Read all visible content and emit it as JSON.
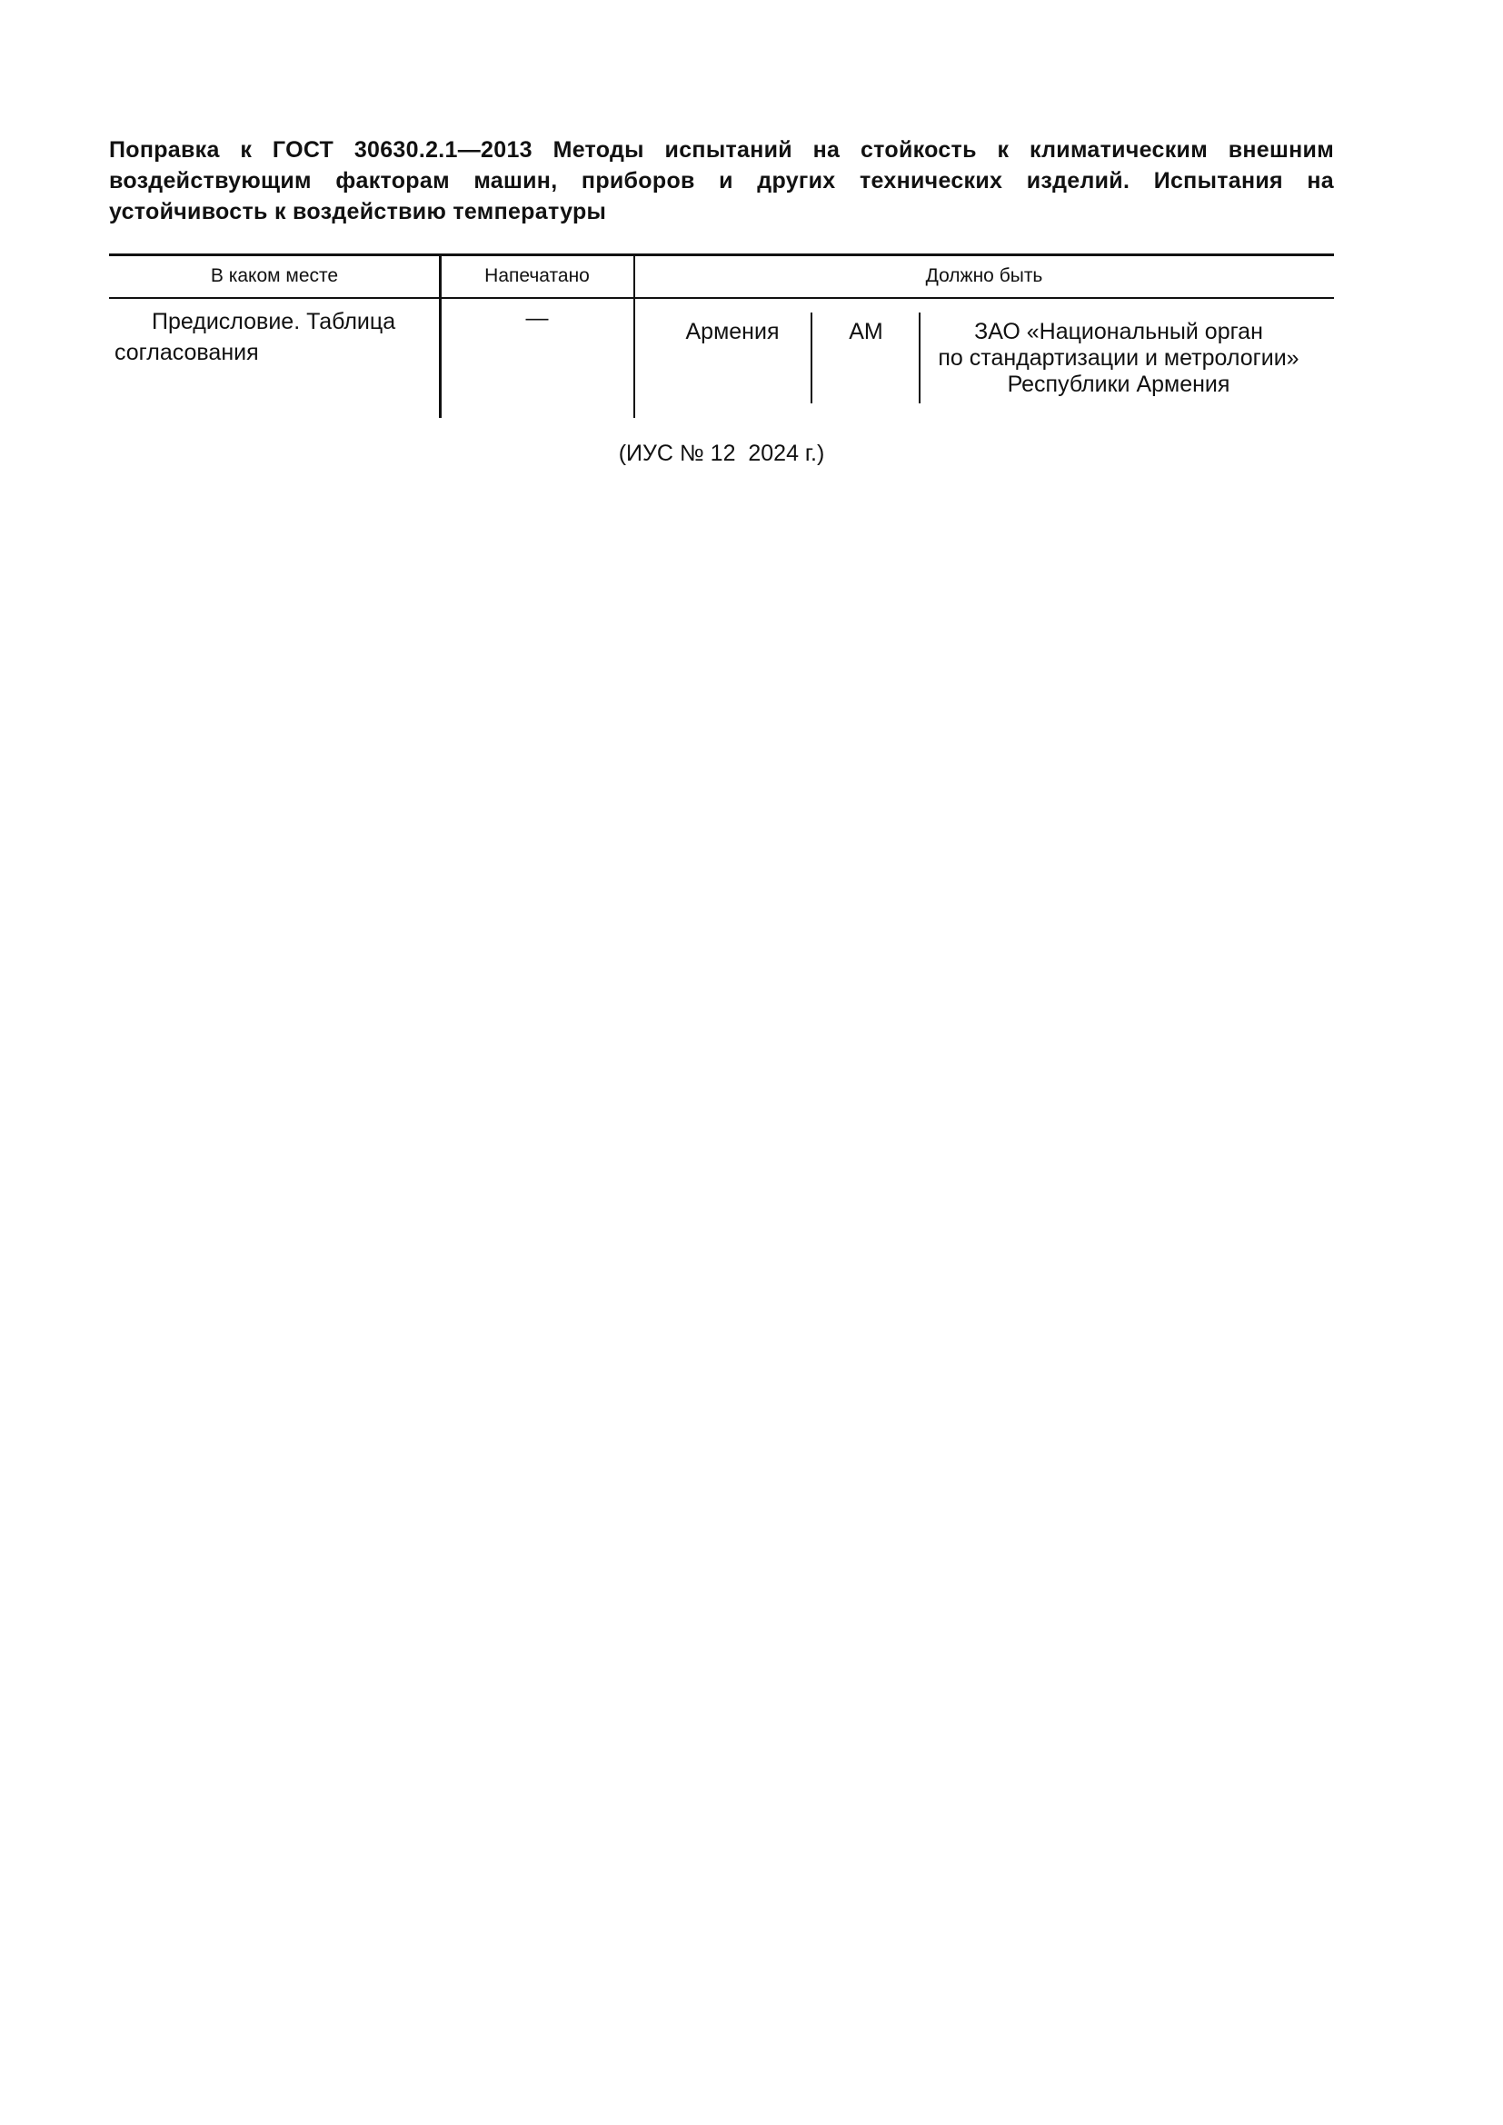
{
  "title": "Поправка к ГОСТ 30630.2.1—2013 Методы испытаний на стойкость к климатическим внешним воздействующим факторам машин, приборов и других технических изделий. Испытания на устойчивость к воздействию температуры",
  "table": {
    "headers": [
      "В каком месте",
      "Напечатано",
      "Должно быть"
    ],
    "row": {
      "place_line1": "Предисловие. Таблица",
      "place_line2": "согласования",
      "printed": "—",
      "should_be": {
        "country": "Армения",
        "code": "AM",
        "org_line1": "ЗАО «Национальный орган",
        "org_line2": "по стандартизации и метрологии»",
        "org_line3": "Республики Армения"
      }
    }
  },
  "footer": "(ИУС № 12  2024 г.)"
}
